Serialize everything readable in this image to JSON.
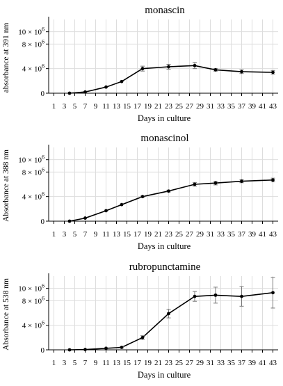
{
  "chart_data": [
    {
      "type": "line",
      "title": "monascin",
      "xlabel": "Days in culture",
      "ylabel": "absorbance at 391 nm",
      "xlim": [
        0,
        44
      ],
      "ylim": [
        0,
        12000000
      ],
      "xticks": [
        "1",
        "3",
        "5",
        "7",
        "9",
        "11",
        "13",
        "15",
        "17",
        "19",
        "21",
        "23",
        "25",
        "27",
        "29",
        "31",
        "33",
        "35",
        "37",
        "39",
        "41",
        "43"
      ],
      "yticks": [
        {
          "value": 0,
          "base": "0",
          "exp": ""
        },
        {
          "value": 4000000,
          "base": "4 × 10",
          "exp": "6"
        },
        {
          "value": 8000000,
          "base": "8 × 10",
          "exp": "6"
        },
        {
          "value": 10000000,
          "base": "10 × 10",
          "exp": "6"
        }
      ],
      "grid": true,
      "x": [
        4,
        7,
        11,
        14,
        18,
        23,
        28,
        32,
        37,
        43
      ],
      "y": [
        0,
        200000,
        1000000,
        1900000,
        4000000,
        4300000,
        4500000,
        3800000,
        3500000,
        3400000
      ],
      "err": [
        0,
        0,
        0,
        0,
        400000,
        400000,
        500000,
        200000,
        300000,
        300000
      ]
    },
    {
      "type": "line",
      "title": "monascinol",
      "xlabel": "Days in culture",
      "ylabel": "Absorbance at 388 nm",
      "xlim": [
        0,
        44
      ],
      "ylim": [
        0,
        12000000
      ],
      "xticks": [
        "1",
        "3",
        "5",
        "7",
        "9",
        "11",
        "13",
        "15",
        "17",
        "19",
        "21",
        "23",
        "25",
        "27",
        "29",
        "31",
        "33",
        "35",
        "37",
        "39",
        "41",
        "43"
      ],
      "yticks": [
        {
          "value": 0,
          "base": "0",
          "exp": ""
        },
        {
          "value": 4000000,
          "base": "4 × 10",
          "exp": "6"
        },
        {
          "value": 8000000,
          "base": "8 × 10",
          "exp": "6"
        },
        {
          "value": 10000000,
          "base": "10 × 10",
          "exp": "6"
        }
      ],
      "grid": true,
      "x": [
        4,
        7,
        11,
        14,
        18,
        23,
        28,
        32,
        37,
        43
      ],
      "y": [
        0,
        500000,
        1700000,
        2700000,
        4000000,
        4900000,
        6000000,
        6200000,
        6500000,
        6700000
      ],
      "err": [
        0,
        0,
        0,
        0,
        100000,
        150000,
        300000,
        300000,
        250000,
        300000
      ]
    },
    {
      "type": "line",
      "title": "rubropunctamine",
      "xlabel": "Days in culture",
      "ylabel": "Absorbance at 538 nm",
      "xlim": [
        0,
        44
      ],
      "ylim": [
        0,
        12000000
      ],
      "xticks": [
        "1",
        "3",
        "5",
        "7",
        "9",
        "11",
        "13",
        "15",
        "17",
        "19",
        "21",
        "23",
        "25",
        "27",
        "29",
        "31",
        "33",
        "35",
        "37",
        "39",
        "41",
        "43"
      ],
      "yticks": [
        {
          "value": 0,
          "base": "0",
          "exp": ""
        },
        {
          "value": 4000000,
          "base": "4 × 10",
          "exp": "6"
        },
        {
          "value": 8000000,
          "base": "8 × 10",
          "exp": "6"
        },
        {
          "value": 10000000,
          "base": "10 × 10",
          "exp": "6"
        }
      ],
      "grid": true,
      "x": [
        4,
        7,
        11,
        14,
        18,
        23,
        28,
        32,
        37,
        43
      ],
      "y": [
        0,
        50000,
        250000,
        400000,
        2000000,
        5900000,
        8700000,
        8900000,
        8700000,
        9300000
      ],
      "err": [
        0,
        0,
        0,
        100000,
        300000,
        700000,
        800000,
        1300000,
        1600000,
        2500000
      ]
    }
  ]
}
